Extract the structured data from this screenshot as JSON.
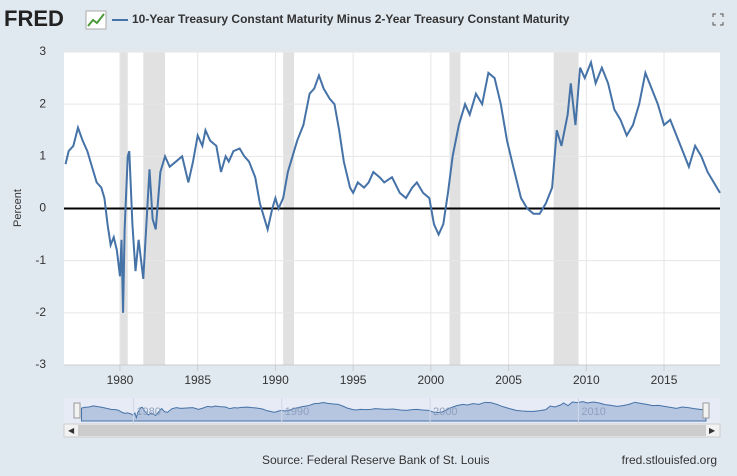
{
  "chart_data": {
    "type": "line",
    "logo": "FRED",
    "title": "10-Year Treasury Constant Maturity Minus 2-Year Treasury Constant Maturity",
    "ylabel": "Percent",
    "source": "Source: Federal Reserve Bank of St. Louis",
    "site": "fred.stlouisfed.org",
    "xlim": [
      1976.4,
      2018.6
    ],
    "xticks": [
      1980,
      1985,
      1990,
      1995,
      2000,
      2005,
      2010,
      2015
    ],
    "ylim": [
      -3,
      3
    ],
    "yticks": [
      -3,
      -2,
      -1,
      0,
      1,
      2,
      3
    ],
    "grid": true,
    "navigator_ticks": [
      1980,
      1990,
      2000,
      2010
    ],
    "recessions": [
      [
        1980.0,
        1980.5
      ],
      [
        1981.5,
        1982.9
      ],
      [
        1990.5,
        1991.2
      ],
      [
        2001.2,
        2001.9
      ],
      [
        2007.9,
        2009.5
      ]
    ],
    "series": [
      {
        "name": "10-Year Treasury Constant Maturity Minus 2-Year Treasury Constant Maturity",
        "color": "#4572a7",
        "x": [
          1976.5,
          1976.7,
          1977.0,
          1977.3,
          1977.6,
          1977.9,
          1978.2,
          1978.5,
          1978.8,
          1979.0,
          1979.2,
          1979.4,
          1979.6,
          1979.8,
          1980.0,
          1980.1,
          1980.2,
          1980.3,
          1980.5,
          1980.6,
          1980.8,
          1981.0,
          1981.2,
          1981.5,
          1981.7,
          1981.9,
          1982.1,
          1982.3,
          1982.6,
          1982.9,
          1983.2,
          1983.6,
          1984.0,
          1984.4,
          1984.7,
          1985.0,
          1985.3,
          1985.5,
          1985.8,
          1986.2,
          1986.5,
          1986.8,
          1987.0,
          1987.3,
          1987.7,
          1988.0,
          1988.3,
          1988.7,
          1989.0,
          1989.3,
          1989.5,
          1989.8,
          1990.0,
          1990.2,
          1990.5,
          1990.8,
          1991.0,
          1991.4,
          1991.8,
          1992.2,
          1992.5,
          1992.8,
          1993.1,
          1993.5,
          1993.8,
          1994.1,
          1994.4,
          1994.8,
          1995.0,
          1995.3,
          1995.7,
          1996.0,
          1996.3,
          1996.7,
          1997.0,
          1997.5,
          1998.0,
          1998.4,
          1998.8,
          1999.1,
          1999.5,
          1999.9,
          2000.2,
          2000.5,
          2000.8,
          2001.1,
          2001.4,
          2001.8,
          2002.2,
          2002.5,
          2002.9,
          2003.3,
          2003.7,
          2004.1,
          2004.5,
          2004.9,
          2005.3,
          2005.8,
          2006.2,
          2006.6,
          2007.0,
          2007.4,
          2007.8,
          2008.1,
          2008.4,
          2008.8,
          2009.0,
          2009.3,
          2009.6,
          2009.9,
          2010.3,
          2010.6,
          2011.0,
          2011.4,
          2011.8,
          2012.2,
          2012.6,
          2013.0,
          2013.4,
          2013.8,
          2014.2,
          2014.6,
          2015.0,
          2015.4,
          2015.8,
          2016.2,
          2016.6,
          2017.0,
          2017.4,
          2017.8,
          2018.2,
          2018.6
        ],
        "values": [
          0.85,
          1.1,
          1.2,
          1.55,
          1.3,
          1.1,
          0.8,
          0.5,
          0.4,
          0.2,
          -0.3,
          -0.7,
          -0.55,
          -0.8,
          -1.3,
          -0.6,
          -2.0,
          -0.4,
          1.0,
          1.1,
          -0.3,
          -1.2,
          -0.6,
          -1.35,
          -0.3,
          0.75,
          -0.2,
          -0.4,
          0.7,
          1.0,
          0.8,
          0.9,
          1.0,
          0.5,
          0.9,
          1.4,
          1.2,
          1.5,
          1.3,
          1.2,
          0.7,
          1.0,
          0.9,
          1.1,
          1.15,
          1.0,
          0.9,
          0.6,
          0.1,
          -0.2,
          -0.4,
          0.0,
          0.2,
          0.0,
          0.2,
          0.7,
          0.9,
          1.3,
          1.6,
          2.2,
          2.3,
          2.55,
          2.3,
          2.1,
          2.0,
          1.5,
          0.9,
          0.4,
          0.3,
          0.5,
          0.4,
          0.5,
          0.7,
          0.6,
          0.5,
          0.6,
          0.3,
          0.2,
          0.4,
          0.5,
          0.3,
          0.2,
          -0.3,
          -0.5,
          -0.3,
          0.3,
          1.0,
          1.6,
          2.0,
          1.8,
          2.2,
          2.0,
          2.6,
          2.5,
          2.0,
          1.3,
          0.8,
          0.2,
          0.0,
          -0.1,
          -0.1,
          0.1,
          0.4,
          1.5,
          1.2,
          1.8,
          2.4,
          1.6,
          2.7,
          2.5,
          2.8,
          2.4,
          2.7,
          2.4,
          1.9,
          1.7,
          1.4,
          1.6,
          2.0,
          2.6,
          2.3,
          2.0,
          1.6,
          1.7,
          1.4,
          1.1,
          0.8,
          1.2,
          1.0,
          0.7,
          0.5,
          0.3
        ]
      }
    ]
  }
}
